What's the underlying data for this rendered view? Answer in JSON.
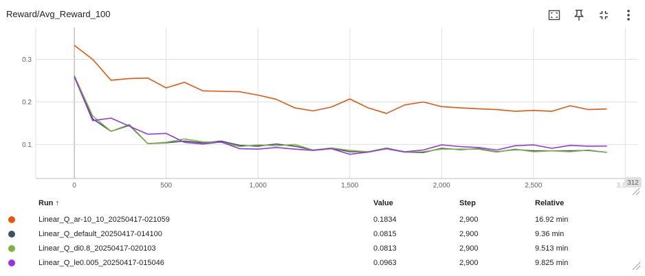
{
  "card": {
    "title": "Reward/Avg_Reward_100",
    "toolbar": [
      {
        "name": "fit-domain-icon",
        "label": "Fit domain to data"
      },
      {
        "name": "pin-icon",
        "label": "Pin card"
      },
      {
        "name": "collapse-icon",
        "label": "Toggle expand"
      },
      {
        "name": "more-vert-icon",
        "label": "More options"
      }
    ]
  },
  "chart_data": {
    "type": "line",
    "title": "Reward/Avg_Reward_100",
    "xlabel": "",
    "ylabel": "",
    "xlim": [
      -210,
      3070
    ],
    "ylim": [
      0.02,
      0.375
    ],
    "x_ticks": [
      "0",
      "500",
      "1,000",
      "1,500",
      "2,000",
      "2,500",
      "3,000"
    ],
    "y_ticks": [
      "0.1",
      "0.2",
      "0.3"
    ],
    "end_badge": "312",
    "grid": true,
    "series": [
      {
        "name": "Linear_Q_ar-10_10_20250417-021059",
        "color": "#e6550d",
        "x": [
          0,
          100,
          200,
          300,
          400,
          500,
          600,
          700,
          800,
          900,
          1000,
          1100,
          1200,
          1300,
          1400,
          1500,
          1600,
          1700,
          1800,
          1900,
          2000,
          2100,
          2200,
          2300,
          2400,
          2500,
          2600,
          2700,
          2800,
          2900
        ],
        "y": [
          0.333,
          0.3,
          0.251,
          0.255,
          0.256,
          0.233,
          0.246,
          0.226,
          0.225,
          0.224,
          0.216,
          0.206,
          0.186,
          0.179,
          0.188,
          0.207,
          0.186,
          0.173,
          0.193,
          0.2,
          0.189,
          0.186,
          0.184,
          0.182,
          0.178,
          0.18,
          0.178,
          0.191,
          0.182,
          0.1834
        ]
      },
      {
        "name": "Linear_Q_default_20250417-014100",
        "color": "#425066",
        "x": [
          0,
          100,
          200,
          300,
          400,
          500,
          600,
          700,
          800,
          900,
          1000,
          1100,
          1200,
          1300,
          1400,
          1500,
          1600,
          1700,
          1800,
          1900,
          2000,
          2100,
          2200,
          2300,
          2400,
          2500,
          2600,
          2700,
          2800,
          2900
        ],
        "y": [
          0.261,
          0.16,
          0.131,
          0.145,
          0.102,
          0.104,
          0.108,
          0.104,
          0.108,
          0.098,
          0.096,
          0.101,
          0.096,
          0.087,
          0.091,
          0.083,
          0.083,
          0.09,
          0.082,
          0.081,
          0.091,
          0.088,
          0.09,
          0.083,
          0.088,
          0.085,
          0.085,
          0.085,
          0.086,
          0.0815
        ]
      },
      {
        "name": "Linear_Q_di0.8_20250417-020103",
        "color": "#7cb342",
        "x": [
          0,
          100,
          200,
          300,
          400,
          500,
          600,
          700,
          800,
          900,
          1000,
          1100,
          1200,
          1300,
          1400,
          1500,
          1600,
          1700,
          1800,
          1900,
          2000,
          2100,
          2200,
          2300,
          2400,
          2500,
          2600,
          2700,
          2800,
          2900
        ],
        "y": [
          0.262,
          0.167,
          0.131,
          0.147,
          0.102,
          0.105,
          0.113,
          0.106,
          0.105,
          0.095,
          0.099,
          0.097,
          0.1,
          0.087,
          0.092,
          0.086,
          0.083,
          0.092,
          0.082,
          0.083,
          0.089,
          0.089,
          0.089,
          0.082,
          0.089,
          0.083,
          0.085,
          0.083,
          0.087,
          0.0813
        ]
      },
      {
        "name": "Linear_Q_le0.005_20250417-015046",
        "color": "#9334e6",
        "x": [
          0,
          100,
          200,
          300,
          400,
          500,
          600,
          700,
          800,
          900,
          1000,
          1100,
          1200,
          1300,
          1400,
          1500,
          1600,
          1700,
          1800,
          1900,
          2000,
          2100,
          2200,
          2300,
          2400,
          2500,
          2600,
          2700,
          2800,
          2900
        ],
        "y": [
          0.259,
          0.156,
          0.162,
          0.143,
          0.124,
          0.126,
          0.105,
          0.101,
          0.106,
          0.09,
          0.089,
          0.093,
          0.089,
          0.086,
          0.09,
          0.077,
          0.082,
          0.09,
          0.083,
          0.087,
          0.099,
          0.095,
          0.093,
          0.087,
          0.097,
          0.099,
          0.091,
          0.098,
          0.096,
          0.0963
        ]
      }
    ]
  },
  "table": {
    "headers": {
      "run": "Run ↑",
      "value": "Value",
      "step": "Step",
      "relative": "Relative"
    },
    "rows": [
      {
        "color": "#e6550d",
        "run": "Linear_Q_ar-10_10_20250417-021059",
        "value": "0.1834",
        "step": "2,900",
        "relative": "16.92 min"
      },
      {
        "color": "#425066",
        "run": "Linear_Q_default_20250417-014100",
        "value": "0.0815",
        "step": "2,900",
        "relative": "9.36 min"
      },
      {
        "color": "#7cb342",
        "run": "Linear_Q_di0.8_20250417-020103",
        "value": "0.0813",
        "step": "2,900",
        "relative": "9.513 min"
      },
      {
        "color": "#9334e6",
        "run": "Linear_Q_le0.005_20250417-015046",
        "value": "0.0963",
        "step": "2,900",
        "relative": "9.825 min"
      }
    ]
  }
}
